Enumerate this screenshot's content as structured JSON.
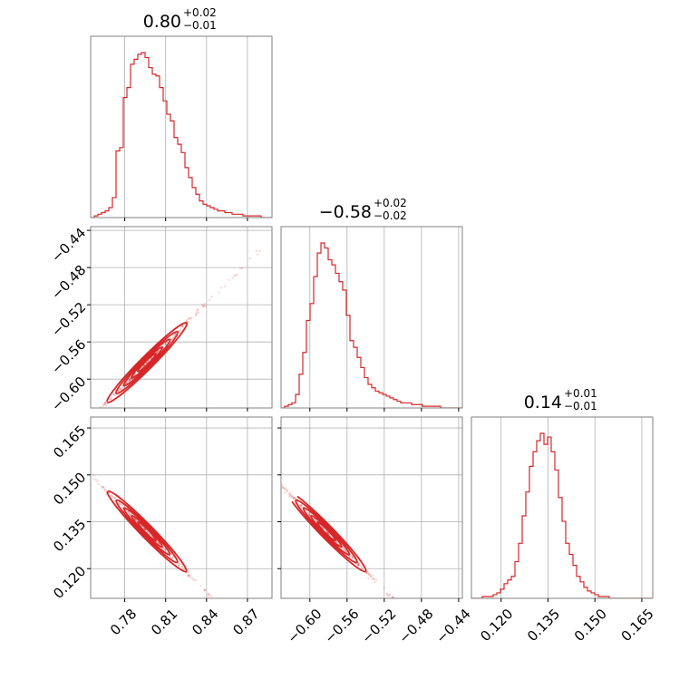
{
  "chart_data": {
    "type": "corner",
    "color": "#d62728",
    "parameters": [
      {
        "range": [
          0.755,
          0.888
        ],
        "ticks": [
          "0.78",
          "0.81",
          "0.84",
          "0.87"
        ],
        "title": {
          "value": "0.80",
          "plus": "+0.02",
          "minus": "−0.01"
        }
      },
      {
        "range": [
          -0.631,
          -0.436
        ],
        "ticks": [
          "−0.60",
          "−0.56",
          "−0.52",
          "−0.48",
          "−0.44"
        ],
        "title": {
          "value": "−0.58",
          "plus": "+0.02",
          "minus": "−0.02"
        }
      },
      {
        "range": [
          0.1105,
          0.1685
        ],
        "ticks": [
          "0.120",
          "0.135",
          "0.150",
          "0.165"
        ],
        "title": {
          "value": "0.14",
          "plus": "+0.01",
          "minus": "−0.01"
        }
      }
    ],
    "histograms": [
      {
        "bin_start": 0.755,
        "bin_end": 0.888,
        "counts": [
          0,
          1,
          2,
          3,
          4,
          6,
          12,
          40,
          42,
          72,
          78,
          92,
          95,
          98,
          99,
          96,
          90,
          86,
          85,
          78,
          70,
          62,
          58,
          48,
          44,
          39,
          30,
          24,
          18,
          14,
          10,
          8,
          7,
          6,
          5,
          4,
          4,
          3,
          3,
          2,
          2,
          2,
          1,
          1,
          1,
          1,
          1,
          0,
          0,
          0
        ]
      },
      {
        "bin_start": -0.631,
        "bin_end": -0.436,
        "counts": [
          0,
          1,
          2,
          3,
          8,
          20,
          33,
          52,
          62,
          78,
          92,
          98,
          95,
          88,
          85,
          80,
          75,
          70,
          55,
          40,
          36,
          30,
          24,
          18,
          14,
          12,
          10,
          9,
          8,
          7,
          6,
          5,
          4,
          3,
          3,
          3,
          2,
          2,
          2,
          1,
          1,
          1,
          1,
          1,
          0,
          0,
          0,
          0,
          0,
          0
        ]
      },
      {
        "bin_start": 0.1105,
        "bin_end": 0.1685,
        "counts": [
          0,
          0,
          0,
          1,
          1,
          1,
          2,
          3,
          5,
          8,
          10,
          12,
          20,
          30,
          45,
          58,
          72,
          80,
          86,
          90,
          84,
          88,
          80,
          70,
          55,
          42,
          30,
          24,
          18,
          12,
          9,
          6,
          4,
          3,
          2,
          1,
          1,
          1,
          0,
          0,
          0,
          0,
          0,
          0,
          0,
          0,
          0,
          0,
          0,
          0
        ]
      }
    ],
    "pairs": [
      {
        "x": 0,
        "y": 1,
        "diagonal": 1
      },
      {
        "x": 0,
        "y": 2,
        "diagonal": 2
      },
      {
        "x": 1,
        "y": 2,
        "diagonal": 2
      }
    ]
  }
}
